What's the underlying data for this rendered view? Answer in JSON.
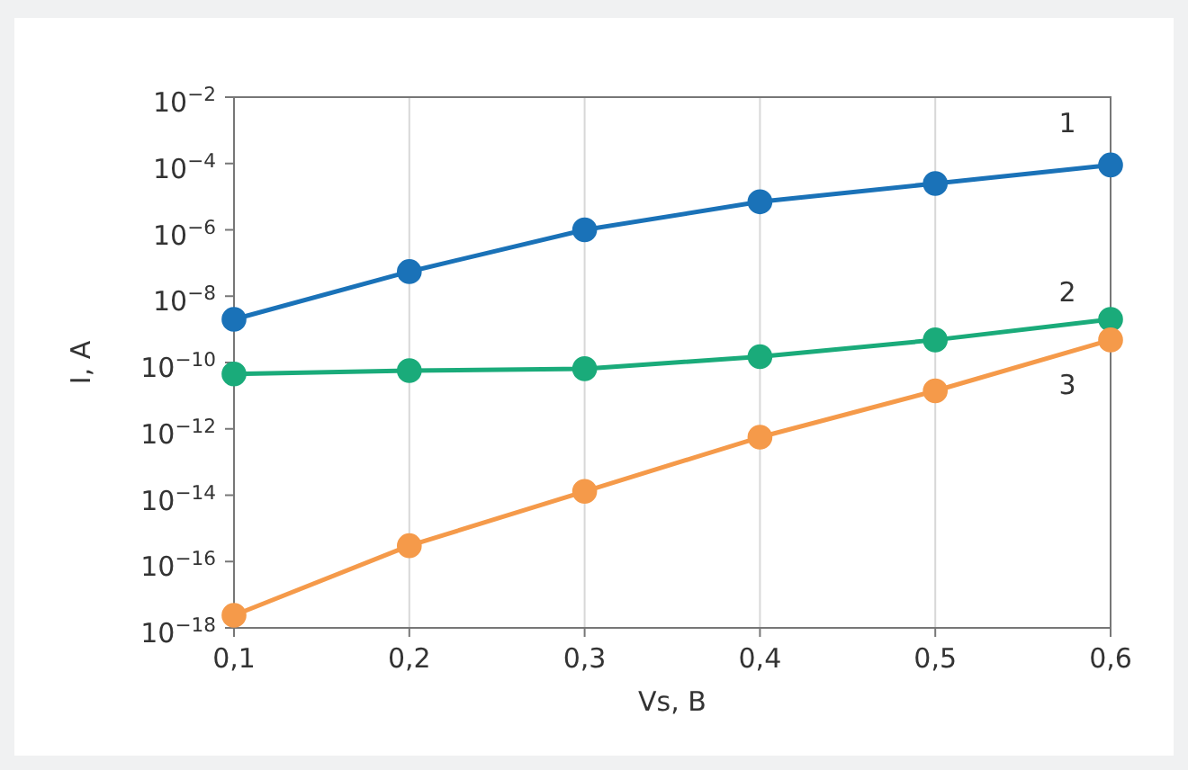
{
  "chart_data": {
    "type": "line",
    "xlabel": "Vs, B",
    "ylabel": "I, A",
    "log": "y",
    "grid": "x",
    "marker": "circle",
    "line_style": "solid",
    "legend": false,
    "x": [
      0.1,
      0.2,
      0.3,
      0.4,
      0.5,
      0.6
    ],
    "xlim": [
      0.1,
      0.6
    ],
    "xticks": [
      {
        "value": 0.1,
        "label": "0,1"
      },
      {
        "value": 0.2,
        "label": "0,2"
      },
      {
        "value": 0.3,
        "label": "0,3"
      },
      {
        "value": 0.4,
        "label": "0,4"
      },
      {
        "value": 0.5,
        "label": "0,5"
      },
      {
        "value": 0.6,
        "label": "0,6"
      }
    ],
    "ylim": [
      1e-18,
      0.01
    ],
    "yticks": [
      {
        "value": 1e-18,
        "label": "10$^{−18}$"
      },
      {
        "value": 1e-16,
        "label": "10$^{−16}$"
      },
      {
        "value": 1e-14,
        "label": "10$^{−14}$"
      },
      {
        "value": 1e-12,
        "label": "10$^{−12}$"
      },
      {
        "value": 1e-10,
        "label": "10$^{−10}$"
      },
      {
        "value": 1e-08,
        "label": "10$^{−8}$"
      },
      {
        "value": 1e-06,
        "label": "10$^{−6}$"
      },
      {
        "value": 0.0001,
        "label": "10$^{−4}$"
      },
      {
        "value": 0.01,
        "label": "10$^{−2}$"
      }
    ],
    "series": [
      {
        "name": "1",
        "color": "#1a72b8",
        "values": [
          2e-09,
          5.5e-08,
          1e-06,
          7e-06,
          2.5e-05,
          9e-05
        ]
      },
      {
        "name": "2",
        "color": "#1aab7a",
        "values": [
          4.5e-11,
          5.7e-11,
          6.5e-11,
          1.5e-10,
          4.8e-10,
          2e-09
        ]
      },
      {
        "name": "3",
        "color": "#f59a4a",
        "values": [
          2.4e-18,
          3e-16,
          1.3e-14,
          5.6e-13,
          1.4e-11,
          4.8e-10
        ]
      }
    ]
  }
}
